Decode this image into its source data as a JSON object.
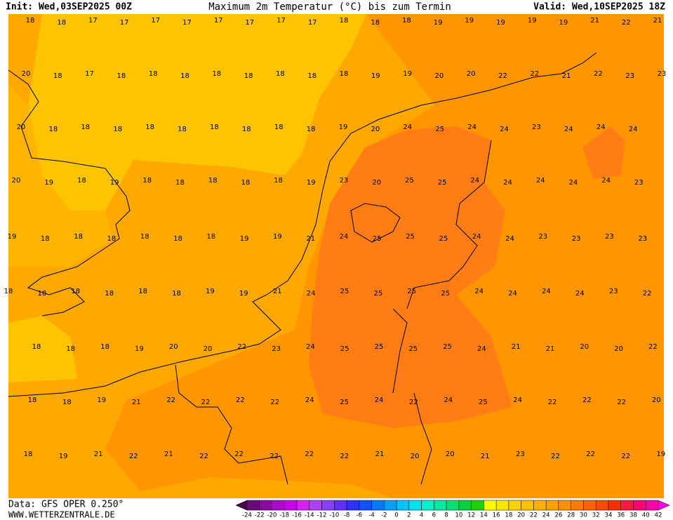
{
  "header": {
    "init": "Init: Wed,03SEP2025 00Z",
    "title": "Maximum 2m Temperatur (°C) bis zum Termin",
    "valid": "Valid: Wed,10SEP2025 18Z"
  },
  "footer": {
    "source": "Data: GFS OPER 0.250°",
    "site": "WWW.WETTERZENTRALE.DE"
  },
  "map": {
    "labels": [
      [
        18,
        18,
        17,
        17,
        17,
        17,
        17,
        17,
        17,
        17,
        18,
        18,
        18,
        19,
        19,
        19,
        19,
        19,
        21,
        22,
        21
      ],
      [
        20,
        18,
        17,
        18,
        18,
        18,
        18,
        18,
        18,
        18,
        18,
        19,
        19,
        20,
        20,
        22,
        22,
        21,
        22,
        23,
        23
      ],
      [
        20,
        18,
        18,
        18,
        18,
        18,
        18,
        18,
        18,
        18,
        19,
        20,
        24,
        25,
        24,
        24,
        23,
        24,
        24,
        24
      ],
      [
        20,
        19,
        18,
        19,
        18,
        18,
        18,
        18,
        18,
        19,
        23,
        20,
        25,
        25,
        24,
        24,
        24,
        24,
        24,
        23
      ],
      [
        19,
        18,
        18,
        18,
        18,
        18,
        18,
        19,
        19,
        21,
        24,
        25,
        25,
        25,
        24,
        24,
        23,
        23,
        23,
        23
      ],
      [
        18,
        18,
        18,
        18,
        18,
        18,
        19,
        19,
        21,
        24,
        25,
        25,
        25,
        25,
        24,
        24,
        24,
        24,
        23,
        22
      ],
      [
        18,
        18,
        18,
        19,
        20,
        20,
        22,
        23,
        24,
        25,
        25,
        25,
        25,
        24,
        21,
        21,
        20,
        20,
        22
      ],
      [
        18,
        18,
        19,
        21,
        22,
        22,
        22,
        22,
        24,
        25,
        24,
        22,
        24,
        25,
        24,
        22,
        22,
        22,
        20
      ],
      [
        18,
        19,
        21,
        22,
        21,
        22,
        22,
        22,
        22,
        22,
        21,
        20,
        20,
        21,
        23,
        22,
        22,
        22,
        19
      ]
    ]
  },
  "colorbar": {
    "ticks": [
      -24,
      -22,
      -20,
      -18,
      -16,
      -14,
      -12,
      -10,
      -8,
      -6,
      -4,
      -2,
      0,
      2,
      4,
      6,
      8,
      10,
      12,
      14,
      16,
      18,
      20,
      22,
      24,
      26,
      28,
      30,
      32,
      34,
      36,
      38,
      40,
      42
    ],
    "colors": [
      "#4a0050",
      "#6a0a78",
      "#8a0aa0",
      "#a80ac8",
      "#c800e8",
      "#d820ff",
      "#b040ff",
      "#8840ff",
      "#6030ff",
      "#3030ff",
      "#1050ff",
      "#0078ff",
      "#00a0ff",
      "#00c4ff",
      "#00e0f0",
      "#00f0c8",
      "#00e8a0",
      "#00e070",
      "#00d040",
      "#20d000",
      "#ffff00",
      "#ffe600",
      "#ffd200",
      "#ffc000",
      "#ffb000",
      "#ffa000",
      "#ff9000",
      "#ff7c00",
      "#ff6400",
      "#ff4c00",
      "#ff3000",
      "#ff1840",
      "#ff0070",
      "#ff00a8",
      "#ff00d8"
    ]
  }
}
